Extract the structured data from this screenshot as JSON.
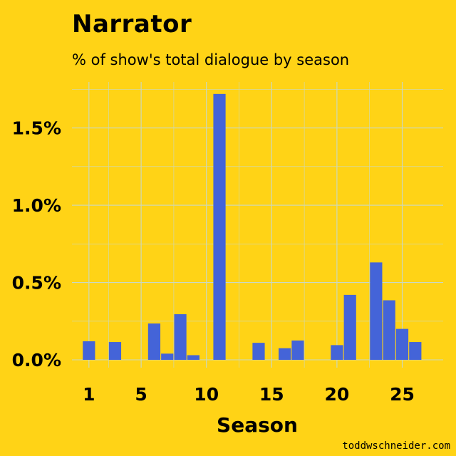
{
  "header": {
    "title": "Narrator",
    "subtitle": "% of show's total dialogue by season"
  },
  "credit": "toddwschneider.com",
  "colors": {
    "background": "#FFD316",
    "bar": "#4464D8",
    "grid": "#C9D8C6",
    "text": "#000000"
  },
  "chart_data": {
    "type": "bar",
    "title": "Narrator",
    "subtitle": "% of show's total dialogue by season",
    "xlabel": "Season",
    "ylabel": "",
    "x": [
      1,
      3,
      6,
      7,
      8,
      9,
      11,
      14,
      16,
      17,
      20,
      21,
      23,
      24,
      25,
      26
    ],
    "values": [
      0.12,
      0.115,
      0.235,
      0.04,
      0.295,
      0.03,
      1.72,
      0.11,
      0.075,
      0.125,
      0.095,
      0.42,
      0.63,
      0.385,
      0.2,
      0.115
    ],
    "unit": "%",
    "xlim": [
      0,
      27
    ],
    "ylim": [
      0,
      1.77
    ],
    "x_ticks": [
      1,
      5,
      10,
      15,
      20,
      25
    ],
    "y_ticks": [
      0.0,
      0.5,
      1.0,
      1.5
    ],
    "y_tick_labels": [
      "0.0%",
      "0.5%",
      "1.0%",
      "1.5%"
    ],
    "grid": true,
    "legend": "none"
  }
}
